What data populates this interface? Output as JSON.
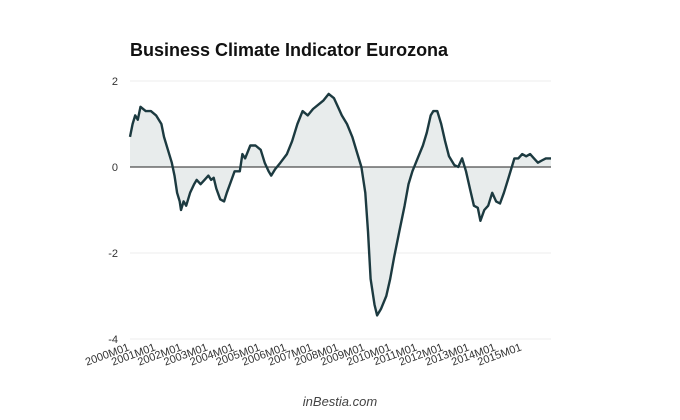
{
  "chart_data": {
    "type": "area",
    "title": "Business Climate Indicator Eurozona",
    "source": "inBestia.com",
    "xlabel": "",
    "ylabel": "",
    "ylim": [
      -4,
      2
    ],
    "yticks": [
      2,
      0,
      -2,
      -4
    ],
    "x_tick_labels": [
      "2000M01",
      "2001M01",
      "2002M01",
      "2003M01",
      "2004M01",
      "2005M01",
      "2006M01",
      "2007M01",
      "2008M01",
      "2009M01",
      "2010M01",
      "2011M01",
      "2012M01",
      "2013M01",
      "2014M01",
      "2015M01"
    ],
    "x_start": "2000M01",
    "x_end": "2015M02",
    "grid": true,
    "legend": "none",
    "colors": {
      "line": "#1c3a40",
      "fill": "#e8ecec",
      "grid": "#ececec",
      "axis": "#222222"
    },
    "series": [
      {
        "name": "Business Climate Indicator",
        "points": [
          [
            0.0,
            0.7
          ],
          [
            0.1,
            1.0
          ],
          [
            0.2,
            1.2
          ],
          [
            0.3,
            1.1
          ],
          [
            0.4,
            1.4
          ],
          [
            0.6,
            1.3
          ],
          [
            0.8,
            1.3
          ],
          [
            1.0,
            1.2
          ],
          [
            1.2,
            1.0
          ],
          [
            1.3,
            0.7
          ],
          [
            1.45,
            0.4
          ],
          [
            1.6,
            0.1
          ],
          [
            1.7,
            -0.2
          ],
          [
            1.8,
            -0.6
          ],
          [
            1.9,
            -0.8
          ],
          [
            1.95,
            -1.0
          ],
          [
            2.05,
            -0.8
          ],
          [
            2.15,
            -0.9
          ],
          [
            2.3,
            -0.6
          ],
          [
            2.45,
            -0.4
          ],
          [
            2.55,
            -0.3
          ],
          [
            2.7,
            -0.4
          ],
          [
            2.85,
            -0.3
          ],
          [
            3.0,
            -0.2
          ],
          [
            3.1,
            -0.3
          ],
          [
            3.2,
            -0.25
          ],
          [
            3.3,
            -0.5
          ],
          [
            3.45,
            -0.75
          ],
          [
            3.6,
            -0.8
          ],
          [
            3.7,
            -0.6
          ],
          [
            3.85,
            -0.35
          ],
          [
            4.0,
            -0.1
          ],
          [
            4.2,
            -0.1
          ],
          [
            4.3,
            0.3
          ],
          [
            4.4,
            0.2
          ],
          [
            4.6,
            0.5
          ],
          [
            4.8,
            0.5
          ],
          [
            5.0,
            0.4
          ],
          [
            5.15,
            0.1
          ],
          [
            5.3,
            -0.1
          ],
          [
            5.4,
            -0.2
          ],
          [
            5.55,
            -0.05
          ],
          [
            5.75,
            0.1
          ],
          [
            6.0,
            0.3
          ],
          [
            6.2,
            0.6
          ],
          [
            6.4,
            1.0
          ],
          [
            6.6,
            1.3
          ],
          [
            6.8,
            1.2
          ],
          [
            7.0,
            1.35
          ],
          [
            7.2,
            1.45
          ],
          [
            7.4,
            1.55
          ],
          [
            7.6,
            1.7
          ],
          [
            7.8,
            1.6
          ],
          [
            7.95,
            1.4
          ],
          [
            8.1,
            1.2
          ],
          [
            8.3,
            1.0
          ],
          [
            8.5,
            0.7
          ],
          [
            8.7,
            0.3
          ],
          [
            8.85,
            0.0
          ],
          [
            9.0,
            -0.6
          ],
          [
            9.1,
            -1.5
          ],
          [
            9.2,
            -2.6
          ],
          [
            9.35,
            -3.2
          ],
          [
            9.45,
            -3.45
          ],
          [
            9.6,
            -3.3
          ],
          [
            9.8,
            -3.0
          ],
          [
            9.95,
            -2.6
          ],
          [
            10.1,
            -2.1
          ],
          [
            10.3,
            -1.5
          ],
          [
            10.5,
            -0.9
          ],
          [
            10.65,
            -0.4
          ],
          [
            10.8,
            -0.1
          ],
          [
            11.0,
            0.2
          ],
          [
            11.2,
            0.5
          ],
          [
            11.35,
            0.8
          ],
          [
            11.5,
            1.2
          ],
          [
            11.6,
            1.3
          ],
          [
            11.75,
            1.3
          ],
          [
            11.9,
            1.0
          ],
          [
            12.05,
            0.6
          ],
          [
            12.2,
            0.25
          ],
          [
            12.4,
            0.05
          ],
          [
            12.55,
            0.0
          ],
          [
            12.7,
            0.2
          ],
          [
            12.85,
            -0.1
          ],
          [
            13.0,
            -0.5
          ],
          [
            13.15,
            -0.9
          ],
          [
            13.3,
            -0.95
          ],
          [
            13.4,
            -1.25
          ],
          [
            13.55,
            -1.0
          ],
          [
            13.7,
            -0.9
          ],
          [
            13.85,
            -0.6
          ],
          [
            14.0,
            -0.8
          ],
          [
            14.15,
            -0.85
          ],
          [
            14.3,
            -0.6
          ],
          [
            14.45,
            -0.3
          ],
          [
            14.6,
            0.0
          ],
          [
            14.7,
            0.2
          ],
          [
            14.85,
            0.2
          ],
          [
            15.0,
            0.3
          ],
          [
            15.15,
            0.25
          ],
          [
            15.3,
            0.3
          ],
          [
            15.45,
            0.2
          ],
          [
            15.6,
            0.1
          ],
          [
            15.75,
            0.15
          ],
          [
            15.9,
            0.2
          ],
          [
            16.1,
            0.2
          ]
        ]
      }
    ]
  }
}
